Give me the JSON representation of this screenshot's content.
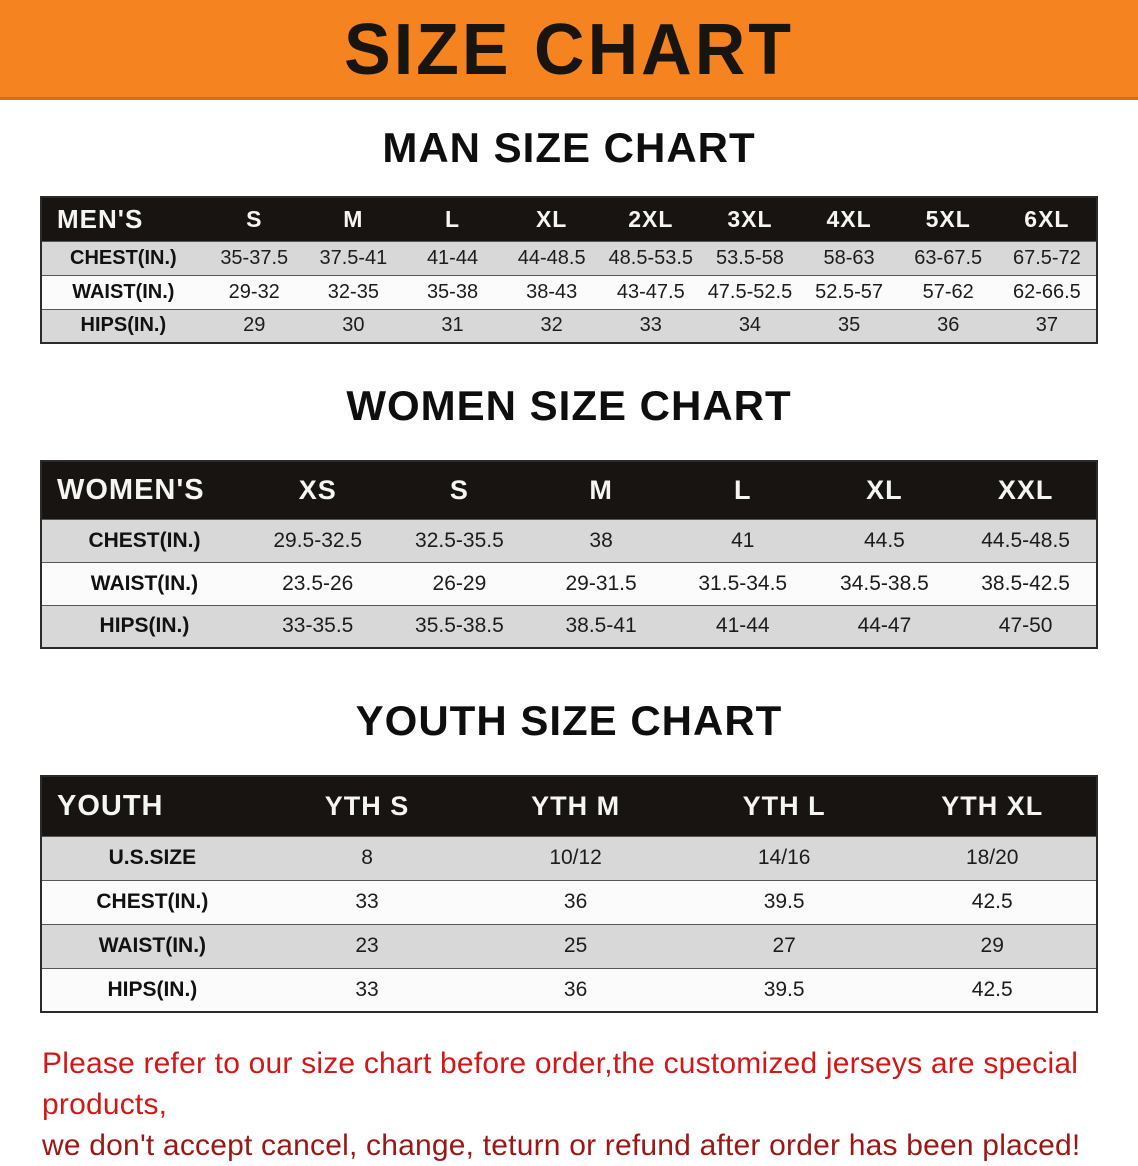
{
  "banner": {
    "title": "SIZE CHART",
    "background_color": "#f5831f"
  },
  "sections": [
    {
      "heading": "MAN SIZE CHART",
      "table": {
        "header": [
          "MEN'S",
          "S",
          "M",
          "L",
          "XL",
          "2XL",
          "3XL",
          "4XL",
          "5XL",
          "6XL"
        ],
        "rows": [
          {
            "label": "CHEST(IN.)",
            "values": [
              "35-37.5",
              "37.5-41",
              "41-44",
              "44-48.5",
              "48.5-53.5",
              "53.5-58",
              "58-63",
              "63-67.5",
              "67.5-72"
            ]
          },
          {
            "label": "WAIST(IN.)",
            "values": [
              "29-32",
              "32-35",
              "35-38",
              "38-43",
              "43-47.5",
              "47.5-52.5",
              "52.5-57",
              "57-62",
              "62-66.5"
            ]
          },
          {
            "label": "HIPS(IN.)",
            "values": [
              "29",
              "30",
              "31",
              "32",
              "33",
              "34",
              "35",
              "36",
              "37"
            ]
          }
        ]
      }
    },
    {
      "heading": "WOMEN SIZE CHART",
      "table": {
        "header": [
          "WOMEN'S",
          "XS",
          "S",
          "M",
          "L",
          "XL",
          "XXL"
        ],
        "rows": [
          {
            "label": "CHEST(IN.)",
            "values": [
              "29.5-32.5",
              "32.5-35.5",
              "38",
              "41",
              "44.5",
              "44.5-48.5"
            ]
          },
          {
            "label": "WAIST(IN.)",
            "values": [
              "23.5-26",
              "26-29",
              "29-31.5",
              "31.5-34.5",
              "34.5-38.5",
              "38.5-42.5"
            ]
          },
          {
            "label": "HIPS(IN.)",
            "values": [
              "33-35.5",
              "35.5-38.5",
              "38.5-41",
              "41-44",
              "44-47",
              "47-50"
            ]
          }
        ]
      }
    },
    {
      "heading": "YOUTH SIZE CHART",
      "table": {
        "header": [
          "YOUTH",
          "YTH S",
          "YTH M",
          "YTH L",
          "YTH XL"
        ],
        "rows": [
          {
            "label": "U.S.SIZE",
            "values": [
              "8",
              "10/12",
              "14/16",
              "18/20"
            ]
          },
          {
            "label": "CHEST(IN.)",
            "values": [
              "33",
              "36",
              "39.5",
              "42.5"
            ]
          },
          {
            "label": "WAIST(IN.)",
            "values": [
              "23",
              "25",
              "27",
              "29"
            ]
          },
          {
            "label": "HIPS(IN.)",
            "values": [
              "33",
              "36",
              "39.5",
              "42.5"
            ]
          }
        ]
      }
    }
  ],
  "footer": {
    "line1": "Please refer to our size chart before order,the customized jerseys are special products,",
    "line2": "we don't accept cancel, change, teturn or refund after order has been placed!",
    "line1_color": "#d31717",
    "line2_color": "#9e1515"
  },
  "colors": {
    "banner_orange": "#f5831f",
    "table_header_black": "#171412",
    "row_gray": "#d8d8d8",
    "row_white": "#fbfbfb"
  }
}
